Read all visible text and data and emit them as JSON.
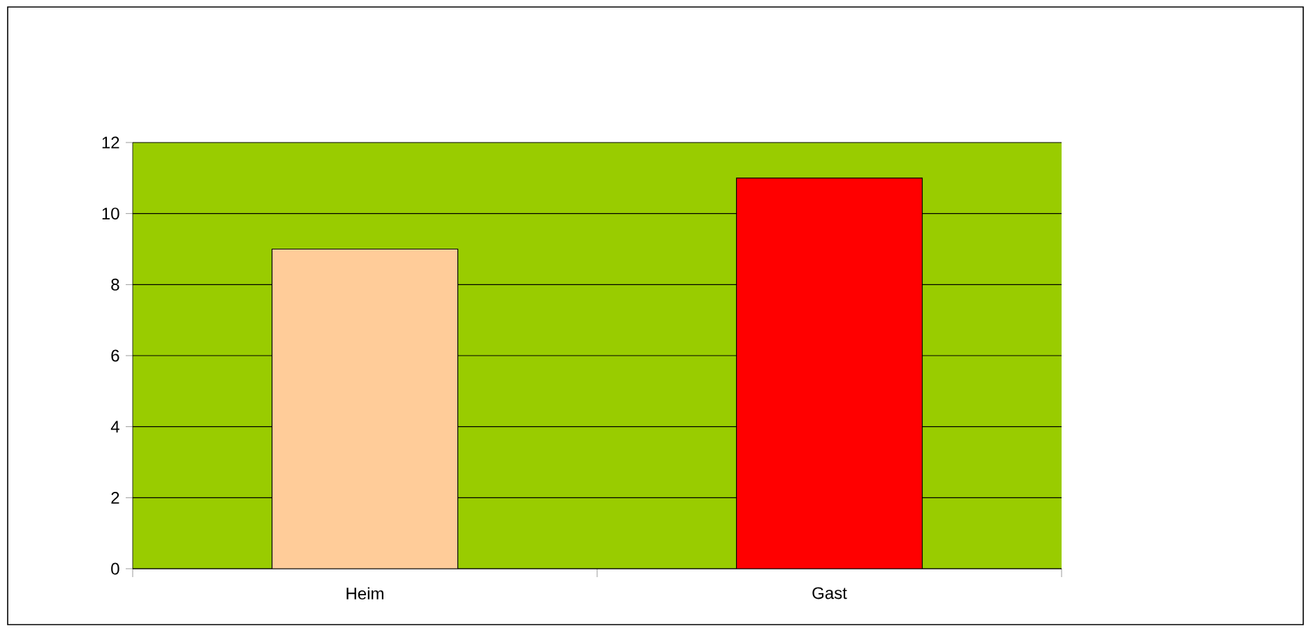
{
  "chart_data": {
    "type": "bar",
    "categories": [
      "Heim",
      "Gast"
    ],
    "values": [
      9,
      11
    ],
    "colors": [
      "#ffcc99",
      "#ff0000"
    ],
    "ylim": [
      0,
      12
    ],
    "yticks": [
      0,
      2,
      4,
      6,
      8,
      10,
      12
    ],
    "grid": "y"
  }
}
